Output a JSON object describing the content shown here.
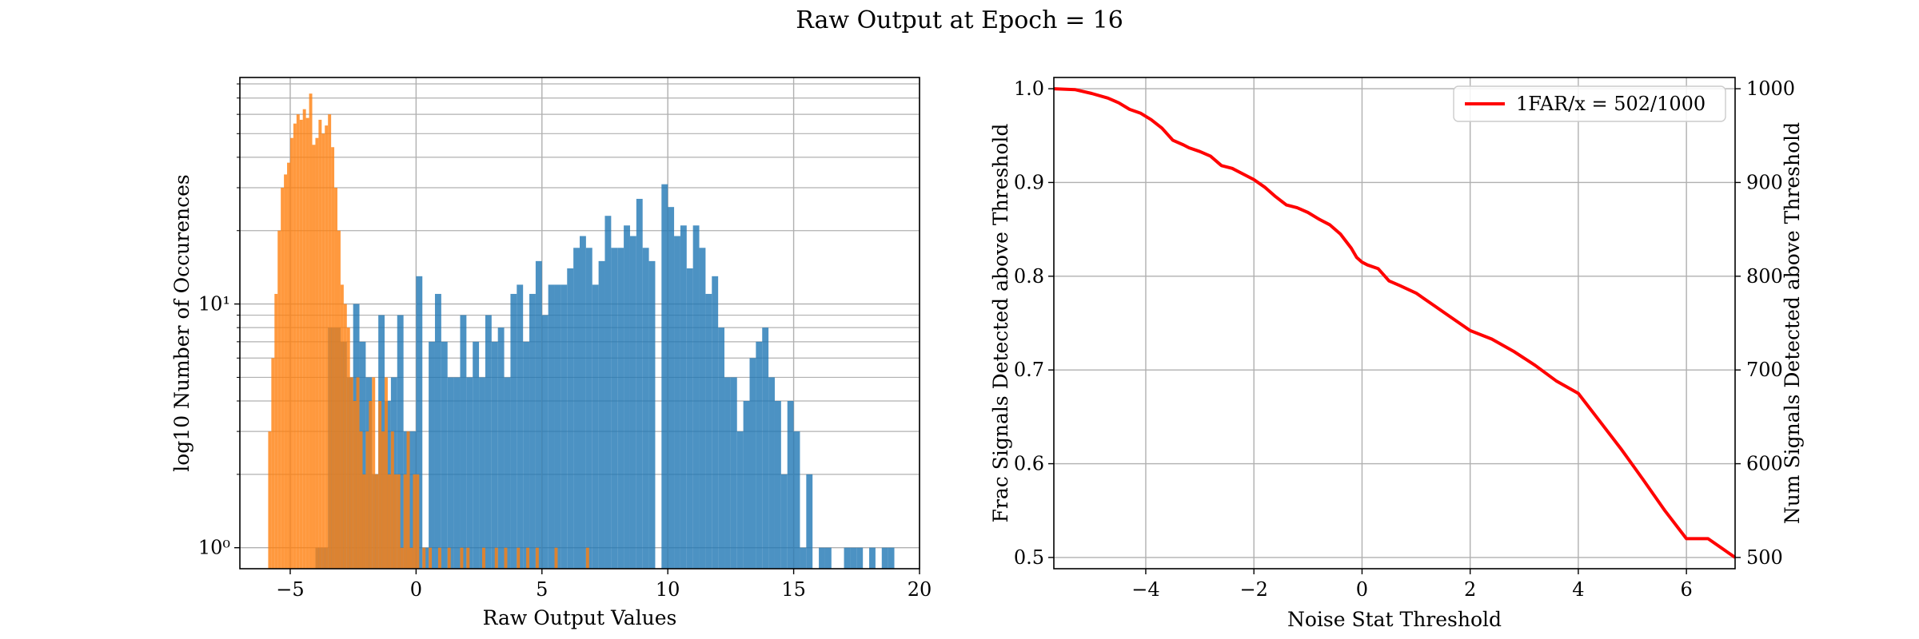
{
  "figure_title": "Raw Output at Epoch = 16",
  "colors": {
    "signal": "#1f77b4",
    "noise": "#ff7f0e",
    "curve": "#ff0000",
    "grid": "#b0b0b0"
  },
  "chart_data": [
    {
      "type": "bar",
      "subtype": "histogram",
      "title": "",
      "xlabel": "Raw Output Values",
      "ylabel": "log10 Number of Occurences",
      "xlim": [
        -7,
        20
      ],
      "ylim": [
        0.82,
        85
      ],
      "y_scale": "log",
      "x_ticks": [
        -5,
        0,
        5,
        10,
        15,
        20
      ],
      "x_tick_labels": [
        "−5",
        "0",
        "5",
        "10",
        "15",
        "20"
      ],
      "y_ticks": [
        1,
        10
      ],
      "y_tick_labels": [
        "10⁰",
        "10¹"
      ],
      "grid": true,
      "legend": "none",
      "series": [
        {
          "color": "#1f77b4",
          "bin_width": 0.25,
          "bins": [
            [
              -4,
              1
            ],
            [
              -3.75,
              1
            ],
            [
              -3.5,
              8
            ],
            [
              -3.25,
              8
            ],
            [
              -3,
              7
            ],
            [
              -2.75,
              5
            ],
            [
              -2.5,
              10
            ],
            [
              -2.25,
              7
            ],
            [
              -2,
              5
            ],
            [
              -1.75,
              2
            ],
            [
              -1.5,
              9
            ],
            [
              -1.25,
              4
            ],
            [
              -1,
              5
            ],
            [
              -0.75,
              9
            ],
            [
              -0.5,
              3
            ],
            [
              -0.25,
              3
            ],
            [
              0,
              13
            ],
            [
              0.25,
              1
            ],
            [
              0.5,
              7
            ],
            [
              0.75,
              11
            ],
            [
              1,
              7
            ],
            [
              1.25,
              5
            ],
            [
              1.5,
              5
            ],
            [
              1.75,
              9
            ],
            [
              2,
              5
            ],
            [
              2.25,
              7
            ],
            [
              2.5,
              5
            ],
            [
              2.75,
              9
            ],
            [
              3,
              7
            ],
            [
              3.25,
              8
            ],
            [
              3.5,
              5
            ],
            [
              3.75,
              11
            ],
            [
              4,
              12
            ],
            [
              4.25,
              7
            ],
            [
              4.5,
              11
            ],
            [
              4.75,
              15
            ],
            [
              5,
              9
            ],
            [
              5.25,
              12
            ],
            [
              5.5,
              12
            ],
            [
              5.75,
              12
            ],
            [
              6,
              14
            ],
            [
              6.25,
              17
            ],
            [
              6.5,
              19
            ],
            [
              6.75,
              17
            ],
            [
              7,
              12
            ],
            [
              7.25,
              15
            ],
            [
              7.5,
              23
            ],
            [
              7.75,
              17
            ],
            [
              8,
              17
            ],
            [
              8.25,
              21
            ],
            [
              8.5,
              19
            ],
            [
              8.75,
              27
            ],
            [
              9,
              17
            ],
            [
              9.25,
              15
            ],
            [
              9.75,
              31
            ],
            [
              10,
              25
            ],
            [
              10.25,
              19
            ],
            [
              10.5,
              21
            ],
            [
              10.75,
              14
            ],
            [
              11,
              21
            ],
            [
              11.25,
              17
            ],
            [
              11.5,
              11
            ],
            [
              11.75,
              13
            ],
            [
              12,
              8
            ],
            [
              12.25,
              5
            ],
            [
              12.5,
              5
            ],
            [
              12.75,
              3
            ],
            [
              13,
              4
            ],
            [
              13.25,
              6
            ],
            [
              13.5,
              7
            ],
            [
              13.75,
              8
            ],
            [
              14,
              5
            ],
            [
              14.25,
              4
            ],
            [
              14.5,
              2
            ],
            [
              14.75,
              4
            ],
            [
              15,
              3
            ],
            [
              15.25,
              1
            ],
            [
              15.5,
              2
            ],
            [
              16,
              1
            ],
            [
              16.25,
              1
            ],
            [
              17,
              1
            ],
            [
              17.25,
              1
            ],
            [
              17.5,
              1
            ],
            [
              18,
              1
            ],
            [
              18.5,
              1
            ],
            [
              18.75,
              1
            ]
          ]
        },
        {
          "color": "#ff7f0e",
          "bin_width": 0.125,
          "bins": [
            [
              -5.875,
              3
            ],
            [
              -5.75,
              6
            ],
            [
              -5.625,
              11
            ],
            [
              -5.5,
              20
            ],
            [
              -5.375,
              30
            ],
            [
              -5.25,
              34
            ],
            [
              -5.125,
              38
            ],
            [
              -5,
              48
            ],
            [
              -4.875,
              55
            ],
            [
              -4.75,
              60
            ],
            [
              -4.625,
              57
            ],
            [
              -4.5,
              63
            ],
            [
              -4.375,
              58
            ],
            [
              -4.25,
              73
            ],
            [
              -4.125,
              45
            ],
            [
              -4,
              48
            ],
            [
              -3.875,
              57
            ],
            [
              -3.75,
              50
            ],
            [
              -3.625,
              54
            ],
            [
              -3.5,
              60
            ],
            [
              -3.375,
              44
            ],
            [
              -3.25,
              30
            ],
            [
              -3.125,
              20
            ],
            [
              -3,
              12
            ],
            [
              -2.875,
              10
            ],
            [
              -2.75,
              8
            ],
            [
              -2.625,
              5
            ],
            [
              -2.5,
              4
            ],
            [
              -2.375,
              5
            ],
            [
              -2.25,
              3
            ],
            [
              -2.125,
              2
            ],
            [
              -2,
              3
            ],
            [
              -1.875,
              4
            ],
            [
              -1.75,
              5
            ],
            [
              -1.625,
              2
            ],
            [
              -1.5,
              4
            ],
            [
              -1.375,
              3
            ],
            [
              -1.25,
              5
            ],
            [
              -1.125,
              2
            ],
            [
              -1,
              3
            ],
            [
              -0.875,
              2
            ],
            [
              -0.75,
              2
            ],
            [
              -0.625,
              1
            ],
            [
              -0.5,
              2
            ],
            [
              -0.375,
              3
            ],
            [
              -0.25,
              1
            ],
            [
              -0.125,
              2
            ],
            [
              0,
              2
            ],
            [
              0.25,
              1
            ],
            [
              0.5,
              1
            ],
            [
              0.875,
              1
            ],
            [
              1.25,
              1
            ],
            [
              1.75,
              1
            ],
            [
              2,
              1
            ],
            [
              2.625,
              1
            ],
            [
              3.125,
              1
            ],
            [
              3.5,
              1
            ],
            [
              4,
              1
            ],
            [
              4.375,
              1
            ],
            [
              4.75,
              1
            ],
            [
              5.5,
              1
            ],
            [
              6.75,
              1
            ]
          ]
        }
      ]
    },
    {
      "type": "line",
      "title": "",
      "xlabel": "Noise Stat Threshold",
      "ylabel": "Frac Signals Detected above Threshold",
      "ylabel_right": "Num Signals Detected above Threshold",
      "xlim": [
        -5.7,
        6.9
      ],
      "ylim": [
        0.488,
        1.012
      ],
      "ylim_right": [
        488,
        1012
      ],
      "x_ticks": [
        -4,
        -2,
        0,
        2,
        4,
        6
      ],
      "x_tick_labels": [
        "−4",
        "−2",
        "0",
        "2",
        "4",
        "6"
      ],
      "y_ticks": [
        0.5,
        0.6,
        0.7,
        0.8,
        0.9,
        1.0
      ],
      "y_tick_labels": [
        "0.5",
        "0.6",
        "0.7",
        "0.8",
        "0.9",
        "1.0"
      ],
      "y_ticks_right": [
        500,
        600,
        700,
        800,
        900,
        1000
      ],
      "y_tick_labels_right": [
        "500",
        "600",
        "700",
        "800",
        "900",
        "1000"
      ],
      "grid": true,
      "legend": "upper right",
      "series": [
        {
          "name": "1FAR/x = 502/1000",
          "color": "#ff0000",
          "x": [
            -5.7,
            -5.3,
            -5.0,
            -4.7,
            -4.5,
            -4.3,
            -4.1,
            -3.9,
            -3.7,
            -3.5,
            -3.3,
            -3.2,
            -3.0,
            -2.8,
            -2.6,
            -2.4,
            -2.2,
            -2.0,
            -1.8,
            -1.6,
            -1.4,
            -1.2,
            -1.0,
            -0.8,
            -0.6,
            -0.4,
            -0.2,
            -0.1,
            0.0,
            0.1,
            0.3,
            0.5,
            0.7,
            1.0,
            1.3,
            1.6,
            2.0,
            2.4,
            2.8,
            3.2,
            3.6,
            4.0,
            4.4,
            4.8,
            5.2,
            5.6,
            6.0,
            6.4,
            6.9
          ],
          "y": [
            1.0,
            0.999,
            0.995,
            0.99,
            0.985,
            0.978,
            0.974,
            0.967,
            0.958,
            0.945,
            0.94,
            0.937,
            0.933,
            0.928,
            0.918,
            0.915,
            0.909,
            0.903,
            0.895,
            0.885,
            0.876,
            0.873,
            0.868,
            0.861,
            0.855,
            0.845,
            0.83,
            0.82,
            0.815,
            0.812,
            0.808,
            0.795,
            0.79,
            0.782,
            0.77,
            0.758,
            0.742,
            0.733,
            0.72,
            0.705,
            0.688,
            0.675,
            0.645,
            0.615,
            0.583,
            0.55,
            0.52,
            0.52,
            0.5
          ]
        }
      ]
    }
  ]
}
